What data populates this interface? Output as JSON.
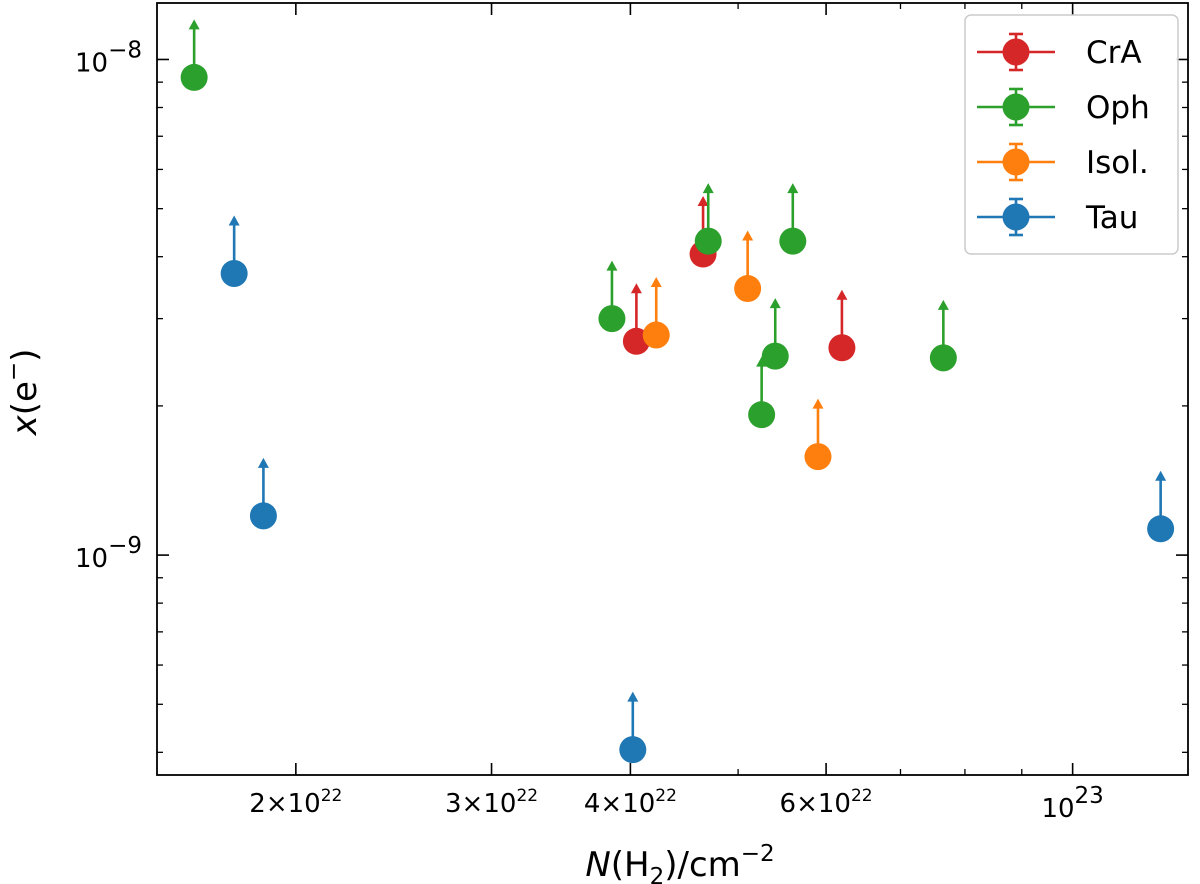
{
  "chart_data": {
    "type": "scatter",
    "title": "",
    "xlabel": {
      "italic": "N",
      "open": "(H",
      "sub": "2",
      "close": ")/cm",
      "sup": "−2"
    },
    "ylabel": {
      "italic": "x",
      "open": "(e",
      "sup": "−",
      "close": ")"
    },
    "x_scale": "log",
    "y_scale": "log",
    "xlim": [
      1.5e+22,
      1.27e+23
    ],
    "ylim": [
      3.6e-10,
      1.3e-08
    ],
    "x_ticks": [
      {
        "value": 2e+22,
        "mantissa": "2",
        "times": "×",
        "base": "10",
        "exp": "22"
      },
      {
        "value": 3e+22,
        "mantissa": "3",
        "times": "×",
        "base": "10",
        "exp": "22"
      },
      {
        "value": 4e+22,
        "mantissa": "4",
        "times": "×",
        "base": "10",
        "exp": "22"
      },
      {
        "value": 6e+22,
        "mantissa": "6",
        "times": "×",
        "base": "10",
        "exp": "22"
      },
      {
        "value": 1e+23,
        "mantissa": "",
        "times": "",
        "base": "10",
        "exp": "23"
      }
    ],
    "x_minor_ticks": [
      5e+22,
      7e+22,
      8e+22,
      9e+22
    ],
    "y_ticks": [
      {
        "value": 1e-08,
        "base": "10",
        "exp": "−8"
      },
      {
        "value": 1e-09,
        "base": "10",
        "exp": "−9"
      }
    ],
    "y_minor_ticks": [
      4e-10,
      5e-10,
      6e-10,
      7e-10,
      8e-10,
      9e-10,
      2e-09,
      3e-09,
      4e-09,
      5e-09,
      6e-09,
      7e-09,
      8e-09,
      9e-09
    ],
    "legend_position": "upper-right",
    "lower_limits": true,
    "series": [
      {
        "name": "CrA",
        "color": "#d62728",
        "points": [
          {
            "x": 4.05e+22,
            "y": 2.7e-09
          },
          {
            "x": 4.65e+22,
            "y": 4.05e-09
          },
          {
            "x": 6.2e+22,
            "y": 2.62e-09
          }
        ]
      },
      {
        "name": "Oph",
        "color": "#2ca02c",
        "points": [
          {
            "x": 1.62e+22,
            "y": 9.2e-09
          },
          {
            "x": 3.85e+22,
            "y": 3e-09
          },
          {
            "x": 4.7e+22,
            "y": 4.3e-09
          },
          {
            "x": 5.25e+22,
            "y": 1.92e-09
          },
          {
            "x": 5.4e+22,
            "y": 2.52e-09
          },
          {
            "x": 5.6e+22,
            "y": 4.3e-09
          },
          {
            "x": 7.65e+22,
            "y": 2.5e-09
          }
        ]
      },
      {
        "name": "Isol.",
        "color": "#ff7f0e",
        "points": [
          {
            "x": 4.22e+22,
            "y": 2.78e-09
          },
          {
            "x": 5.1e+22,
            "y": 3.45e-09
          },
          {
            "x": 5.9e+22,
            "y": 1.58e-09
          }
        ]
      },
      {
        "name": "Tau",
        "color": "#1f77b4",
        "points": [
          {
            "x": 1.76e+22,
            "y": 3.7e-09
          },
          {
            "x": 1.87e+22,
            "y": 1.2e-09
          },
          {
            "x": 4.02e+22,
            "y": 4.05e-10
          },
          {
            "x": 1.2e+23,
            "y": 1.13e-09
          }
        ]
      }
    ]
  }
}
